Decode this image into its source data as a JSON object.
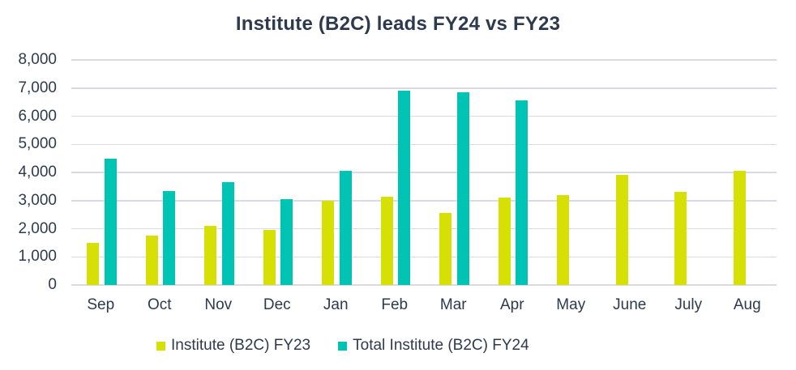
{
  "title": "Institute (B2C) leads FY24 vs FY23",
  "colors": {
    "fy23": "#d6e004",
    "fy24": "#00c4b3",
    "text": "#2d3a4e",
    "grid": "#d9dbe4",
    "background": "#ffffff"
  },
  "legend": {
    "items": [
      {
        "label": "Institute (B2C) FY23",
        "color": "#d6e004"
      },
      {
        "label": "Total Institute (B2C) FY24",
        "color": "#00c4b3"
      }
    ],
    "position": "bottom"
  },
  "chart_data": {
    "type": "bar",
    "title": "Institute (B2C) leads FY24 vs FY23",
    "categories": [
      "Sep",
      "Oct",
      "Nov",
      "Dec",
      "Jan",
      "Feb",
      "Mar",
      "Apr",
      "May",
      "June",
      "July",
      "Aug"
    ],
    "series": [
      {
        "name": "Institute (B2C) FY23",
        "color": "#d6e004",
        "values": [
          1500,
          1750,
          2100,
          1950,
          3000,
          3150,
          2550,
          3100,
          3200,
          3900,
          3300,
          4050
        ]
      },
      {
        "name": "Total Institute (B2C) FY24",
        "color": "#00c4b3",
        "values": [
          4480,
          3350,
          3650,
          3050,
          4060,
          6900,
          6850,
          6550,
          null,
          null,
          null,
          null
        ]
      }
    ],
    "xlabel": "",
    "ylabel": "",
    "ylim": [
      0,
      8000
    ],
    "ytick_step": 1000,
    "ytick_labels": [
      "8,000",
      "7,000",
      "6,000",
      "5,000",
      "4,000",
      "3,000",
      "2,000",
      "1,000",
      "0"
    ],
    "grid": true,
    "legend_position": "bottom"
  }
}
